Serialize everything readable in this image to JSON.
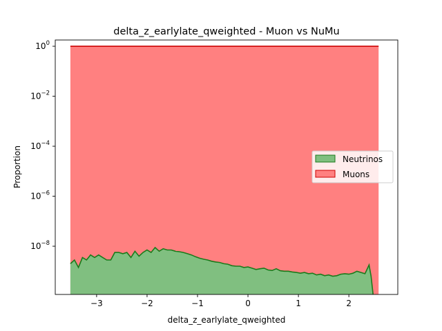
{
  "chart_data": {
    "type": "area",
    "title": "delta_z_earlylate_qweighted - Muon vs NuMu",
    "xlabel": "delta_z_earlylate_qweighted",
    "ylabel": "Proportion",
    "xlim": [
      -3.82,
      2.97
    ],
    "ylim_log10": [
      -9.93,
      0.25
    ],
    "yscale": "log",
    "grid": false,
    "legend_position": "center-right",
    "x_ticks": [
      {
        "value": -3,
        "label": "−3"
      },
      {
        "value": -2,
        "label": "−2"
      },
      {
        "value": -1,
        "label": "−1"
      },
      {
        "value": 0,
        "label": "0"
      },
      {
        "value": 1,
        "label": "1"
      },
      {
        "value": 2,
        "label": "2"
      }
    ],
    "y_ticks": [
      {
        "exp": 0,
        "base": "10",
        "sup": "0"
      },
      {
        "exp": -2,
        "base": "10",
        "sup": "−2"
      },
      {
        "exp": -4,
        "base": "10",
        "sup": "−4"
      },
      {
        "exp": -6,
        "base": "10",
        "sup": "−6"
      },
      {
        "exp": -8,
        "base": "10",
        "sup": "−8"
      }
    ],
    "series": [
      {
        "name": "Neutrinos",
        "fill": "#80bf80",
        "line": "#1a7a1a",
        "x": [
          -3.52,
          -3.44,
          -3.36,
          -3.28,
          -3.2,
          -3.12,
          -3.04,
          -2.96,
          -2.88,
          -2.8,
          -2.72,
          -2.64,
          -2.56,
          -2.48,
          -2.4,
          -2.32,
          -2.24,
          -2.16,
          -2.08,
          -2.0,
          -1.92,
          -1.84,
          -1.76,
          -1.68,
          -1.6,
          -1.52,
          -1.44,
          -1.36,
          -1.28,
          -1.2,
          -1.12,
          -1.04,
          -0.96,
          -0.88,
          -0.8,
          -0.72,
          -0.64,
          -0.56,
          -0.48,
          -0.4,
          -0.32,
          -0.24,
          -0.16,
          -0.08,
          0.0,
          0.08,
          0.16,
          0.24,
          0.32,
          0.4,
          0.48,
          0.56,
          0.64,
          0.72,
          0.8,
          0.88,
          0.96,
          1.04,
          1.12,
          1.2,
          1.28,
          1.36,
          1.44,
          1.52,
          1.6,
          1.68,
          1.76,
          1.84,
          1.92,
          2.0,
          2.08,
          2.16,
          2.24,
          2.32,
          2.4,
          2.44,
          2.48
        ],
        "log10_y": [
          -8.7,
          -8.55,
          -8.85,
          -8.45,
          -8.55,
          -8.35,
          -8.45,
          -8.35,
          -8.45,
          -8.55,
          -8.55,
          -8.25,
          -8.25,
          -8.3,
          -8.25,
          -8.45,
          -8.2,
          -8.4,
          -8.25,
          -8.15,
          -8.25,
          -8.05,
          -8.2,
          -8.1,
          -8.15,
          -8.15,
          -8.2,
          -8.22,
          -8.25,
          -8.3,
          -8.35,
          -8.42,
          -8.48,
          -8.52,
          -8.55,
          -8.6,
          -8.63,
          -8.65,
          -8.7,
          -8.72,
          -8.78,
          -8.8,
          -8.8,
          -8.85,
          -8.83,
          -8.88,
          -8.93,
          -8.9,
          -8.88,
          -8.95,
          -8.97,
          -8.9,
          -8.98,
          -9.0,
          -9.0,
          -9.03,
          -9.05,
          -9.08,
          -9.05,
          -9.1,
          -9.08,
          -9.15,
          -9.12,
          -9.18,
          -9.15,
          -9.2,
          -9.18,
          -9.12,
          -9.1,
          -9.12,
          -9.08,
          -9.0,
          -9.05,
          -9.1,
          -8.75,
          -9.2,
          -9.93
        ]
      },
      {
        "name": "Muons",
        "fill": "#ff8080",
        "line": "#cc0000",
        "x": [
          -3.52,
          2.59
        ],
        "log10_y": [
          0.0,
          0.0
        ]
      }
    ]
  }
}
